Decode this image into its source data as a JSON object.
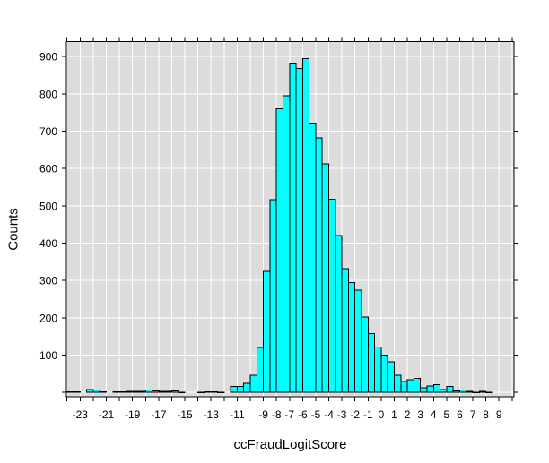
{
  "figure": {
    "kind": "histogram screenshot",
    "page_bg": "#ffffff"
  },
  "chart_data": {
    "type": "bar",
    "subtype": "histogram",
    "title": "",
    "xlabel": "ccFraudLogitScore",
    "ylabel": "Counts",
    "bins": {
      "start": -24,
      "width": 0.5
    },
    "counts": [
      2,
      2,
      0,
      8,
      6,
      2,
      0,
      2,
      2,
      3,
      3,
      3,
      7,
      4,
      3,
      3,
      4,
      1,
      0,
      0,
      1,
      2,
      2,
      1,
      0,
      16,
      16,
      24,
      46,
      120,
      324,
      516,
      760,
      795,
      882,
      868,
      894,
      722,
      682,
      613,
      518,
      420,
      332,
      294,
      274,
      202,
      158,
      122,
      100,
      82,
      46,
      29,
      34,
      38,
      13,
      17,
      21,
      8,
      16,
      4,
      6,
      3,
      1,
      3,
      1
    ],
    "xlim": [
      -24.05,
      10.15
    ],
    "ylim": [
      -11.5,
      940
    ],
    "x_ticks": {
      "min": -24,
      "max": 10,
      "step": 1
    },
    "x_tick_labels": [
      -23,
      -21,
      -19,
      -17,
      -15,
      -13,
      -11,
      -9,
      -8,
      -7,
      -6,
      -5,
      -4,
      -3,
      -2,
      -1,
      0,
      1,
      2,
      3,
      4,
      5,
      6,
      7,
      8,
      9
    ],
    "y_ticks": {
      "min": 0,
      "max": 900,
      "step": 100
    },
    "y_tick_labels": [
      100,
      200,
      300,
      400,
      500,
      600,
      700,
      800,
      900
    ],
    "grid": {
      "vertical_step": 1,
      "horizontal_step": 100,
      "color": "#ffffff",
      "on": true
    },
    "legend": {
      "shown": false
    },
    "colors": {
      "bar_fill": "#00ffff",
      "bar_stroke": "#000000",
      "plot_bg": "#dcdcdc",
      "frame": "#000000",
      "tick": "#000000",
      "text": "#000000"
    }
  }
}
